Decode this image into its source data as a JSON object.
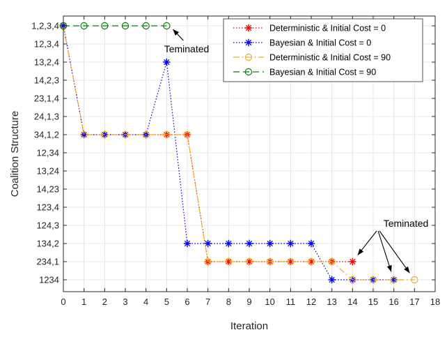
{
  "chart_data": {
    "type": "line",
    "xlabel": "Iteration",
    "ylabel": "Coalition Structure",
    "xlim": [
      0,
      18
    ],
    "x_ticks": [
      0,
      1,
      2,
      3,
      4,
      5,
      6,
      7,
      8,
      9,
      10,
      11,
      12,
      13,
      14,
      15,
      16,
      17,
      18
    ],
    "categories": [
      "1,2,3,4",
      "12,3,4",
      "13,2,4",
      "14,2,3",
      "23,1,4",
      "24,1,3",
      "34,1,2",
      "12,34",
      "13,24",
      "14,23",
      "123,4",
      "124,3",
      "134,2",
      "234,1",
      "1234"
    ],
    "grid": true,
    "legend_position": "top-right",
    "series": [
      {
        "name": "Deterministic & Initial Cost = 0",
        "color": "#ff0000",
        "line": "dotted",
        "marker": "asterisk",
        "x": [
          0,
          1,
          2,
          3,
          4,
          5,
          6,
          7,
          8,
          9,
          10,
          11,
          12,
          13,
          14
        ],
        "y": [
          "1,2,3,4",
          "34,1,2",
          "34,1,2",
          "34,1,2",
          "34,1,2",
          "34,1,2",
          "34,1,2",
          "234,1",
          "234,1",
          "234,1",
          "234,1",
          "234,1",
          "234,1",
          "234,1",
          "234,1"
        ]
      },
      {
        "name": "Bayesian & Initial Cost = 0",
        "color": "#0000ff",
        "line": "dotted",
        "marker": "asterisk",
        "x": [
          0,
          1,
          2,
          3,
          4,
          5,
          6,
          7,
          8,
          9,
          10,
          11,
          12,
          13,
          14,
          15,
          16
        ],
        "y": [
          "1,2,3,4",
          "34,1,2",
          "34,1,2",
          "34,1,2",
          "34,1,2",
          "13,2,4",
          "134,2",
          "134,2",
          "134,2",
          "134,2",
          "134,2",
          "134,2",
          "134,2",
          "1234",
          "1234",
          "1234",
          "1234"
        ]
      },
      {
        "name": "Deterministic & Initial Cost = 90",
        "color": "#edb120",
        "line": "dashdot",
        "marker": "circle",
        "x": [
          0,
          1,
          2,
          3,
          4,
          5,
          6,
          7,
          8,
          9,
          10,
          11,
          12,
          13,
          14,
          15,
          16,
          17
        ],
        "y": [
          "1,2,3,4",
          "34,1,2",
          "34,1,2",
          "34,1,2",
          "34,1,2",
          "34,1,2",
          "34,1,2",
          "234,1",
          "234,1",
          "234,1",
          "234,1",
          "234,1",
          "234,1",
          "234,1",
          "1234",
          "1234",
          "1234",
          "1234"
        ]
      },
      {
        "name": "Bayesian & Initial Cost = 90",
        "color": "#008000",
        "line": "dashed",
        "marker": "circle",
        "x": [
          0,
          1,
          2,
          3,
          4,
          5
        ],
        "y": [
          "1,2,3,4",
          "1,2,3,4",
          "1,2,3,4",
          "1,2,3,4",
          "1,2,3,4",
          "1,2,3,4"
        ]
      }
    ],
    "annotations": [
      {
        "text": "Teminated",
        "targets": [
          [
            5,
            "1,2,3,4"
          ]
        ]
      },
      {
        "text": "Teminated",
        "targets": [
          [
            14,
            "234,1"
          ],
          [
            16,
            "1234"
          ],
          [
            17,
            "1234"
          ]
        ]
      }
    ]
  }
}
